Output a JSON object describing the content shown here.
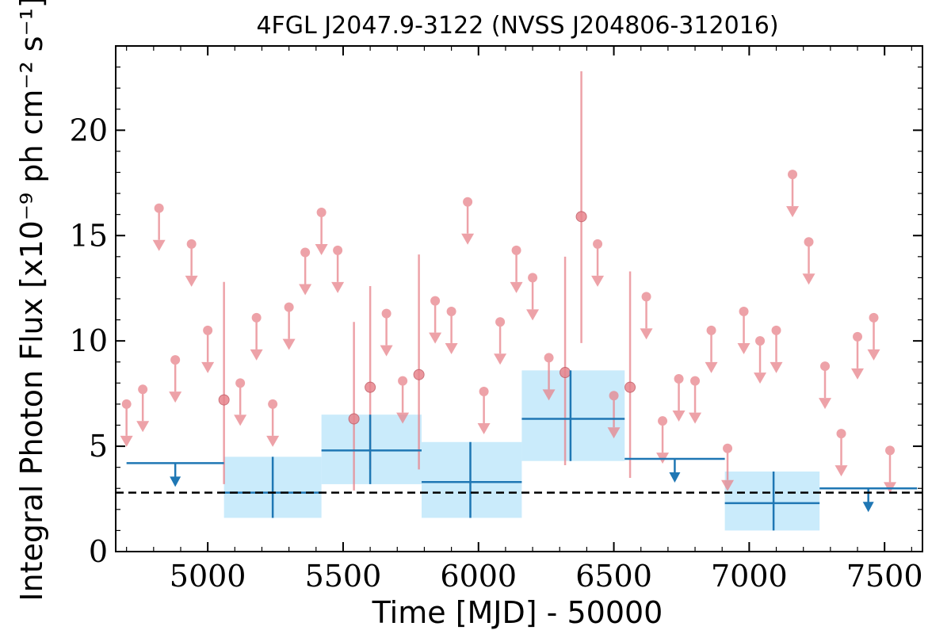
{
  "chart_data": {
    "type": "scatter",
    "title": "4FGL J2047.9-3122 (NVSS J204806-312016)",
    "xlabel": "Time [MJD] - 50000",
    "ylabel": "Integral Photon Flux [x10⁻⁹ ph cm⁻² s⁻¹]",
    "xlim": [
      4660,
      7640
    ],
    "ylim": [
      0,
      24
    ],
    "xticks": [
      5000,
      5500,
      6000,
      6500,
      7000,
      7500
    ],
    "xtick_labels": [
      "5000",
      "5500",
      "6000",
      "6500",
      "7000",
      "7500"
    ],
    "yticks": [
      0,
      5,
      10,
      15,
      20
    ],
    "ytick_labels": [
      "0",
      "5",
      "10",
      "15",
      "20"
    ],
    "baseline": 2.8,
    "colors": {
      "short_bins": "#e8848c",
      "long_bins": "#1f77b4",
      "long_bins_band": "#bde6fa",
      "baseline": "#000000"
    },
    "series": [
      {
        "bin": "short",
        "upper_limits": [
          {
            "x": 4700,
            "y": 7.0
          },
          {
            "x": 4760,
            "y": 7.7
          },
          {
            "x": 4820,
            "y": 16.3
          },
          {
            "x": 4880,
            "y": 9.1
          },
          {
            "x": 4940,
            "y": 14.6
          },
          {
            "x": 5000,
            "y": 10.5
          },
          {
            "x": 5120,
            "y": 8.0
          },
          {
            "x": 5180,
            "y": 11.1
          },
          {
            "x": 5240,
            "y": 7.0
          },
          {
            "x": 5300,
            "y": 11.6
          },
          {
            "x": 5360,
            "y": 14.2
          },
          {
            "x": 5420,
            "y": 16.1
          },
          {
            "x": 5480,
            "y": 14.3
          },
          {
            "x": 5660,
            "y": 11.3
          },
          {
            "x": 5720,
            "y": 8.1
          },
          {
            "x": 5840,
            "y": 11.9
          },
          {
            "x": 5900,
            "y": 11.4
          },
          {
            "x": 5960,
            "y": 16.6
          },
          {
            "x": 6020,
            "y": 7.6
          },
          {
            "x": 6080,
            "y": 10.9
          },
          {
            "x": 6140,
            "y": 14.3
          },
          {
            "x": 6200,
            "y": 13.0
          },
          {
            "x": 6260,
            "y": 9.2
          },
          {
            "x": 6440,
            "y": 14.6
          },
          {
            "x": 6500,
            "y": 7.4
          },
          {
            "x": 6620,
            "y": 12.1
          },
          {
            "x": 6680,
            "y": 6.2
          },
          {
            "x": 6740,
            "y": 8.2
          },
          {
            "x": 6800,
            "y": 8.1
          },
          {
            "x": 6860,
            "y": 10.5
          },
          {
            "x": 6920,
            "y": 4.9
          },
          {
            "x": 6980,
            "y": 11.4
          },
          {
            "x": 7040,
            "y": 10.0
          },
          {
            "x": 7100,
            "y": 10.5
          },
          {
            "x": 7160,
            "y": 17.9
          },
          {
            "x": 7220,
            "y": 14.7
          },
          {
            "x": 7280,
            "y": 8.8
          },
          {
            "x": 7340,
            "y": 5.6
          },
          {
            "x": 7400,
            "y": 10.2
          },
          {
            "x": 7460,
            "y": 11.1
          },
          {
            "x": 7520,
            "y": 4.8
          }
        ],
        "detections": [
          {
            "x": 5060,
            "y": 7.2,
            "ylow": 3.2,
            "yhigh": 12.8
          },
          {
            "x": 5540,
            "y": 6.3,
            "ylow": 2.9,
            "yhigh": 10.9
          },
          {
            "x": 5600,
            "y": 7.8,
            "ylow": 3.9,
            "yhigh": 12.6
          },
          {
            "x": 5780,
            "y": 8.4,
            "ylow": 3.9,
            "yhigh": 14.1
          },
          {
            "x": 6320,
            "y": 8.5,
            "ylow": 4.1,
            "yhigh": 14.0
          },
          {
            "x": 6380,
            "y": 15.9,
            "ylow": 9.9,
            "yhigh": 22.8
          },
          {
            "x": 6560,
            "y": 7.8,
            "ylow": 3.5,
            "yhigh": 13.3
          }
        ]
      },
      {
        "bin": "long",
        "upper_limits": [
          {
            "x0": 4700,
            "x1": 5060,
            "y": 4.2
          },
          {
            "x0": 6540,
            "x1": 6910,
            "y": 4.4
          },
          {
            "x0": 7260,
            "x1": 7620,
            "y": 3.0
          }
        ],
        "detections": [
          {
            "x": 5240,
            "x0": 5060,
            "x1": 5420,
            "y": 2.8,
            "ylow": 1.6,
            "yhigh": 4.5
          },
          {
            "x": 5600,
            "x0": 5420,
            "x1": 5790,
            "y": 4.8,
            "ylow": 3.2,
            "yhigh": 6.5
          },
          {
            "x": 5970,
            "x0": 5790,
            "x1": 6160,
            "y": 3.3,
            "ylow": 1.6,
            "yhigh": 5.2
          },
          {
            "x": 6340,
            "x0": 6160,
            "x1": 6540,
            "y": 6.3,
            "ylow": 4.3,
            "yhigh": 8.6
          },
          {
            "x": 7090,
            "x0": 6910,
            "x1": 7260,
            "y": 2.3,
            "ylow": 1.0,
            "yhigh": 3.8
          }
        ]
      }
    ]
  }
}
